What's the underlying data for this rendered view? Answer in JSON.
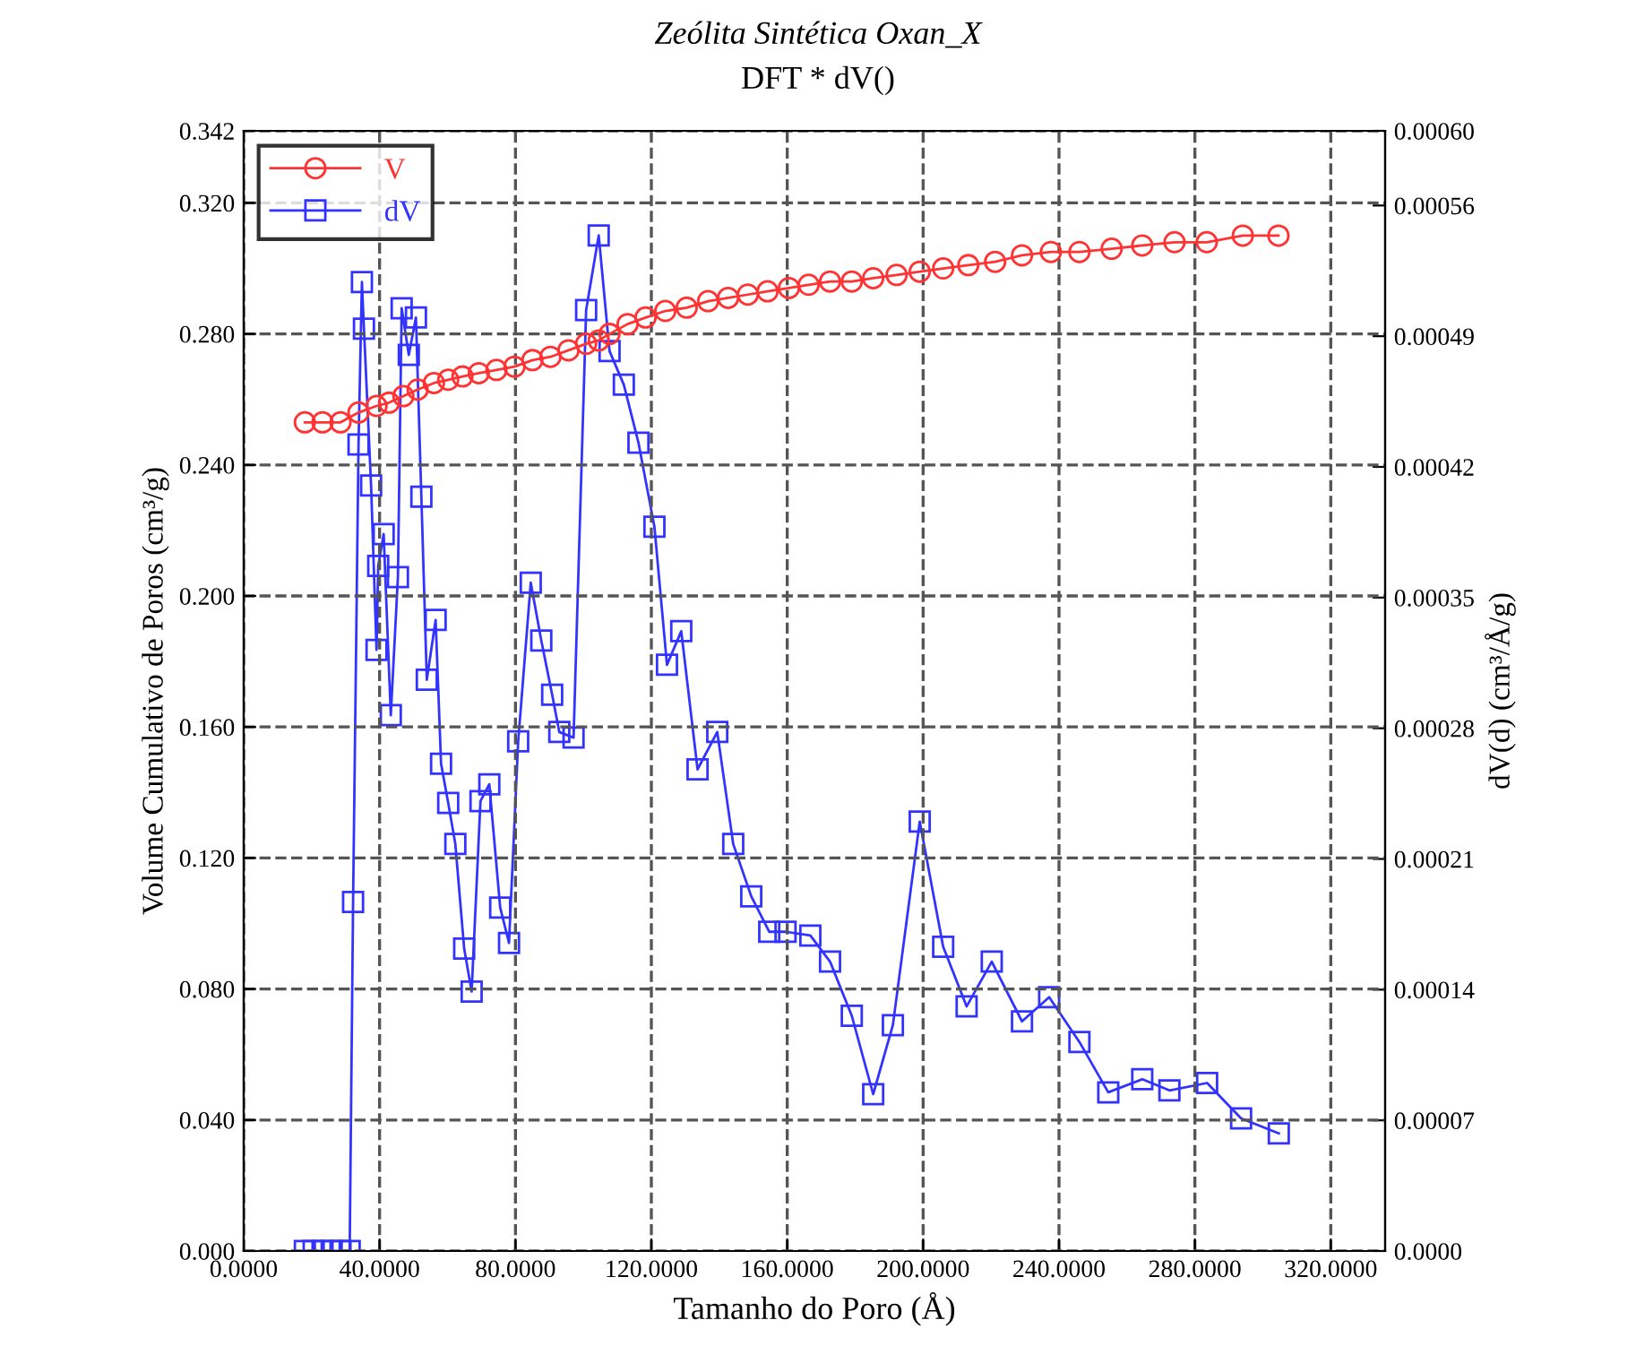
{
  "chart_data": {
    "type": "line",
    "title": "Zeólita Sintética Oxan_X",
    "subtitle": "DFT * dV()",
    "xlabel": "Tamanho do Poro (Å)",
    "ylabel": "Volume Cumulativo de Poros (cm³/g)",
    "y2label": "dV(d) (cm³/Å/g)",
    "xlim": [
      0,
      336
    ],
    "xticks": [
      {
        "value": 0,
        "label": "0.0000"
      },
      {
        "value": 40,
        "label": "40.0000"
      },
      {
        "value": 80,
        "label": "80.0000"
      },
      {
        "value": 120,
        "label": "120.0000"
      },
      {
        "value": 160,
        "label": "160.0000"
      },
      {
        "value": 200,
        "label": "200.0000"
      },
      {
        "value": 240,
        "label": "240.0000"
      },
      {
        "value": 280,
        "label": "280.0000"
      },
      {
        "value": 320,
        "label": "320.0000"
      }
    ],
    "ylim": [
      0,
      0.342
    ],
    "yticks": [
      {
        "value": 0,
        "label": "0.000"
      },
      {
        "value": 0.04,
        "label": "0.040"
      },
      {
        "value": 0.08,
        "label": "0.080"
      },
      {
        "value": 0.12,
        "label": "0.120"
      },
      {
        "value": 0.16,
        "label": "0.160"
      },
      {
        "value": 0.2,
        "label": "0.200"
      },
      {
        "value": 0.24,
        "label": "0.240"
      },
      {
        "value": 0.28,
        "label": "0.280"
      },
      {
        "value": 0.32,
        "label": "0.320"
      },
      0.342
    ],
    "y2lim": [
      0,
      0.0006
    ],
    "y2ticks": [
      {
        "value": 0,
        "label": "0.0000"
      },
      {
        "value": 7e-05,
        "label": "0.00007"
      },
      {
        "value": 0.00014,
        "label": "0.00014"
      },
      {
        "value": 0.00021,
        "label": "0.00021"
      },
      {
        "value": 0.00028,
        "label": "0.00028"
      },
      {
        "value": 0.00035,
        "label": "0.00035"
      },
      {
        "value": 0.00042,
        "label": "0.00042"
      },
      {
        "value": 0.00049,
        "label": "0.00049"
      },
      {
        "value": 0.00056,
        "label": "0.00056"
      },
      {
        "value": 0.0006,
        "label": "0.00060"
      }
    ],
    "grid": true,
    "legend": "top left",
    "line_style": "solid",
    "series": [
      {
        "name": "V",
        "color": "#ff3333",
        "marker": "circle",
        "x": [
          18.0,
          23.2,
          28.5,
          33.8,
          39.1,
          42.8,
          47.0,
          51.2,
          56.0,
          60.2,
          64.4,
          69.2,
          74.4,
          79.7,
          85.0,
          90.3,
          95.6,
          100.8,
          104.5,
          107.7,
          113.0,
          118.3,
          124.1,
          130.4,
          136.7,
          142.6,
          148.4,
          154.2,
          160.5,
          166.3,
          172.6,
          179.0,
          185.3,
          192.2,
          199.0,
          205.9,
          213.3,
          221.2,
          229.1,
          237.6,
          246.0,
          255.5,
          264.5,
          274.0,
          283.5,
          294.1,
          304.6
        ],
        "values": [
          0.253,
          0.253,
          0.253,
          0.256,
          0.258,
          0.259,
          0.261,
          0.263,
          0.265,
          0.266,
          0.267,
          0.268,
          0.269,
          0.27,
          0.272,
          0.273,
          0.275,
          0.277,
          0.278,
          0.28,
          0.283,
          0.285,
          0.287,
          0.288,
          0.29,
          0.291,
          0.292,
          0.293,
          0.294,
          0.295,
          0.296,
          0.296,
          0.297,
          0.298,
          0.299,
          0.3,
          0.301,
          0.302,
          0.304,
          0.305,
          0.305,
          0.306,
          0.307,
          0.308,
          0.308,
          0.31,
          0.31
        ]
      },
      {
        "name": "dV",
        "color": "#3333ff",
        "marker": "square",
        "axis": "y2",
        "x": [
          18.0,
          20.6,
          23.2,
          25.9,
          28.5,
          31.2,
          32.2,
          33.8,
          34.8,
          35.4,
          37.5,
          39.1,
          39.6,
          41.2,
          43.3,
          45.4,
          46.5,
          48.6,
          50.7,
          52.3,
          53.9,
          56.5,
          58.1,
          60.2,
          62.3,
          64.9,
          67.1,
          69.7,
          72.3,
          75.5,
          78.1,
          80.8,
          84.5,
          87.6,
          90.8,
          92.9,
          97.1,
          100.8,
          104.5,
          107.7,
          111.9,
          116.2,
          120.9,
          124.6,
          128.8,
          133.6,
          139.4,
          144.1,
          149.4,
          154.7,
          159.5,
          166.8,
          172.6,
          179.0,
          185.3,
          191.1,
          199.0,
          205.9,
          212.8,
          220.2,
          229.1,
          237.1,
          246.0,
          254.5,
          264.5,
          272.5,
          283.6,
          293.6,
          304.7
        ],
        "values": [
          0,
          0,
          0,
          0,
          0,
          0,
          0.000187,
          0.000432,
          0.000519,
          0.000494,
          0.00041,
          0.000322,
          0.000367,
          0.000384,
          0.000287,
          0.000361,
          0.000505,
          0.00048,
          0.0005,
          0.000404,
          0.000306,
          0.000338,
          0.000261,
          0.00024,
          0.000218,
          0.000162,
          0.000139,
          0.000241,
          0.00025,
          0.000184,
          0.000165,
          0.000273,
          0.000358,
          0.000327,
          0.000298,
          0.000278,
          0.000275,
          0.000504,
          0.000544,
          0.000482,
          0.000464,
          0.000433,
          0.000388,
          0.000314,
          0.000332,
          0.000258,
          0.000278,
          0.000218,
          0.00019,
          0.000171,
          0.000171,
          0.000169,
          0.000155,
          0.000126,
          8.4e-05,
          0.000121,
          0.00023,
          0.000163,
          0.000131,
          0.000155,
          0.000123,
          0.000136,
          0.000112,
          8.5e-05,
          9.2e-05,
          8.6e-05,
          9e-05,
          7.1e-05,
          6.3e-05
        ]
      }
    ]
  }
}
